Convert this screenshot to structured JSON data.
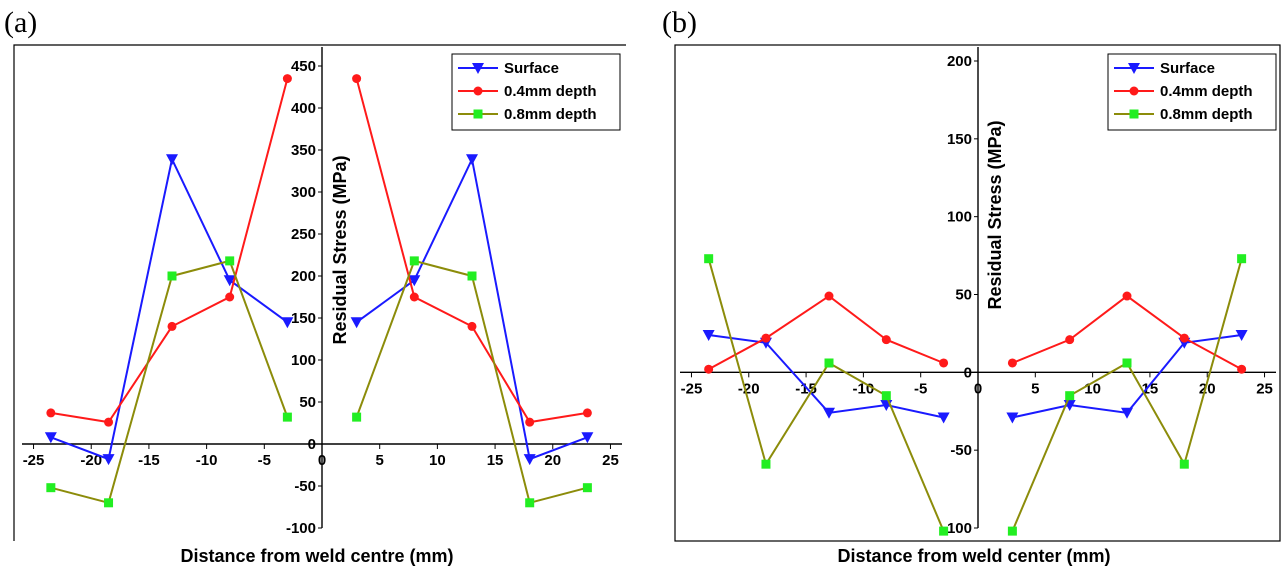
{
  "chart_data": [
    {
      "panel": "(a)",
      "type": "line",
      "xlabel": "Distance from weld centre (mm)",
      "ylabel": "Residual Stress (MPa)",
      "ylim": [
        -100,
        450
      ],
      "left_xlim": [
        -26,
        0
      ],
      "right_xlim": [
        0,
        26
      ],
      "left_xticks": [
        -25,
        -20,
        -15,
        -10,
        -5,
        0
      ],
      "right_xticks": [
        5,
        10,
        15,
        20,
        25
      ],
      "yticks": [
        -100,
        -50,
        0,
        50,
        100,
        150,
        200,
        250,
        300,
        350,
        400,
        450
      ],
      "legend_position": "top-right",
      "series": [
        {
          "name": "Surface",
          "color": "#1a1aff",
          "marker": "triangle-down",
          "left": {
            "x": [
              -23.5,
              -18.5,
              -13.0,
              -8.0,
              -3.0
            ],
            "y": [
              8,
              -18,
              339,
              195,
              145
            ]
          },
          "right": {
            "x": [
              3.0,
              8.0,
              13.0,
              18.0,
              23.0
            ],
            "y": [
              145,
              195,
              339,
              -18,
              8
            ]
          }
        },
        {
          "name": "0.4mm depth",
          "color": "#ff1a1a",
          "marker": "circle",
          "left": {
            "x": [
              -23.5,
              -18.5,
              -13.0,
              -8.0,
              -3.0
            ],
            "y": [
              37,
              26,
              140,
              175,
              435
            ]
          },
          "right": {
            "x": [
              3.0,
              8.0,
              13.0,
              18.0,
              23.0
            ],
            "y": [
              435,
              175,
              140,
              26,
              37
            ]
          }
        },
        {
          "name": "0.8mm depth",
          "color": "#8c8c0a",
          "marker": "square",
          "left": {
            "x": [
              -23.5,
              -18.5,
              -13.0,
              -8.0,
              -3.0
            ],
            "y": [
              -52,
              -70,
              200,
              218,
              32
            ]
          },
          "right": {
            "x": [
              3.0,
              8.0,
              13.0,
              18.0,
              23.0
            ],
            "y": [
              32,
              218,
              200,
              -70,
              -52
            ]
          }
        }
      ]
    },
    {
      "panel": "(b)",
      "type": "line",
      "xlabel": "Distance from weld center (mm)",
      "ylabel": "Residual Stress (MPa)",
      "ylim": [
        -100,
        200
      ],
      "left_xlim": [
        -26,
        0
      ],
      "right_xlim": [
        0,
        26
      ],
      "left_xticks": [
        -25,
        -20,
        -15,
        -10,
        -5
      ],
      "right_xticks": [
        0,
        5,
        10,
        15,
        20,
        25
      ],
      "yticks": [
        -100,
        -50,
        0,
        50,
        100,
        150,
        200
      ],
      "legend_position": "top-right",
      "series": [
        {
          "name": "Surface",
          "color": "#1a1aff",
          "marker": "triangle-down",
          "left": {
            "x": [
              -23.5,
              -18.5,
              -13.0,
              -8.0,
              -3.0
            ],
            "y": [
              24,
              19,
              -26,
              -21,
              -29
            ]
          },
          "right": {
            "x": [
              3.0,
              8.0,
              13.0,
              18.0,
              23.0
            ],
            "y": [
              -29,
              -21,
              -26,
              19,
              24
            ]
          }
        },
        {
          "name": "0.4mm depth",
          "color": "#ff1a1a",
          "marker": "circle",
          "left": {
            "x": [
              -23.5,
              -18.5,
              -13.0,
              -8.0,
              -3.0
            ],
            "y": [
              2,
              22,
              49,
              21,
              6
            ]
          },
          "right": {
            "x": [
              3.0,
              8.0,
              13.0,
              18.0,
              23.0
            ],
            "y": [
              6,
              21,
              49,
              22,
              2
            ]
          }
        },
        {
          "name": "0.8mm depth",
          "color": "#8c8c0a",
          "marker": "square",
          "left": {
            "x": [
              -23.5,
              -18.5,
              -13.0,
              -8.0,
              -3.0
            ],
            "y": [
              73,
              -59,
              6,
              -15,
              -102
            ]
          },
          "right": {
            "x": [
              3.0,
              8.0,
              13.0,
              18.0,
              23.0
            ],
            "y": [
              -102,
              -15,
              6,
              -59,
              73
            ]
          }
        }
      ]
    }
  ]
}
